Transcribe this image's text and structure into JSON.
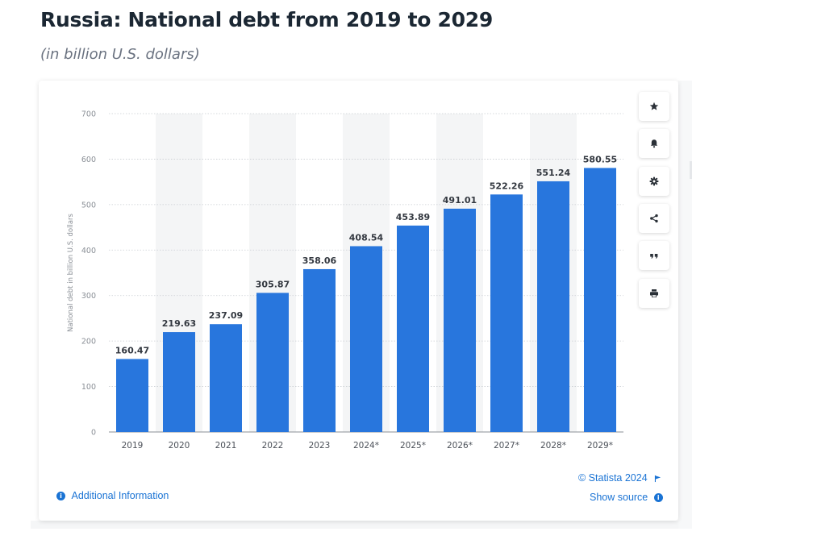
{
  "header": {
    "title": "Russia: National debt from 2019 to 2029",
    "subtitle": "(in billion U.S. dollars)"
  },
  "colors": {
    "bar": "#2876dd",
    "accent": "#1a73d4",
    "title": "#1b2733"
  },
  "toolbar": [
    {
      "name": "favorite-button",
      "icon": "star-icon"
    },
    {
      "name": "notification-button",
      "icon": "bell-icon"
    },
    {
      "name": "settings-button",
      "icon": "gear-icon"
    },
    {
      "name": "share-button",
      "icon": "share-icon"
    },
    {
      "name": "cite-button",
      "icon": "quote-icon"
    },
    {
      "name": "print-button",
      "icon": "printer-icon"
    }
  ],
  "footer": {
    "additional_info": "Additional Information",
    "copyright": "© Statista 2024",
    "show_source": "Show source"
  },
  "chart_data": {
    "type": "bar",
    "title": "",
    "xlabel": "",
    "ylabel": "National debt in billion U.S. dollars",
    "categories": [
      "2019",
      "2020",
      "2021",
      "2022",
      "2023",
      "2024*",
      "2025*",
      "2026*",
      "2027*",
      "2028*",
      "2029*"
    ],
    "values": [
      160.47,
      219.63,
      237.09,
      305.87,
      358.06,
      408.54,
      453.89,
      491.01,
      522.26,
      551.24,
      580.55
    ],
    "value_labels": [
      "160.47",
      "219.63",
      "237.09",
      "305.87",
      "358.06",
      "408.54",
      "453.89",
      "491.01",
      "522.26",
      "551.24",
      "580.55"
    ],
    "ylim": [
      0,
      700
    ],
    "yticks": [
      0,
      100,
      200,
      300,
      400,
      500,
      600,
      700
    ],
    "grid": true,
    "alternating_column_bands": true
  }
}
